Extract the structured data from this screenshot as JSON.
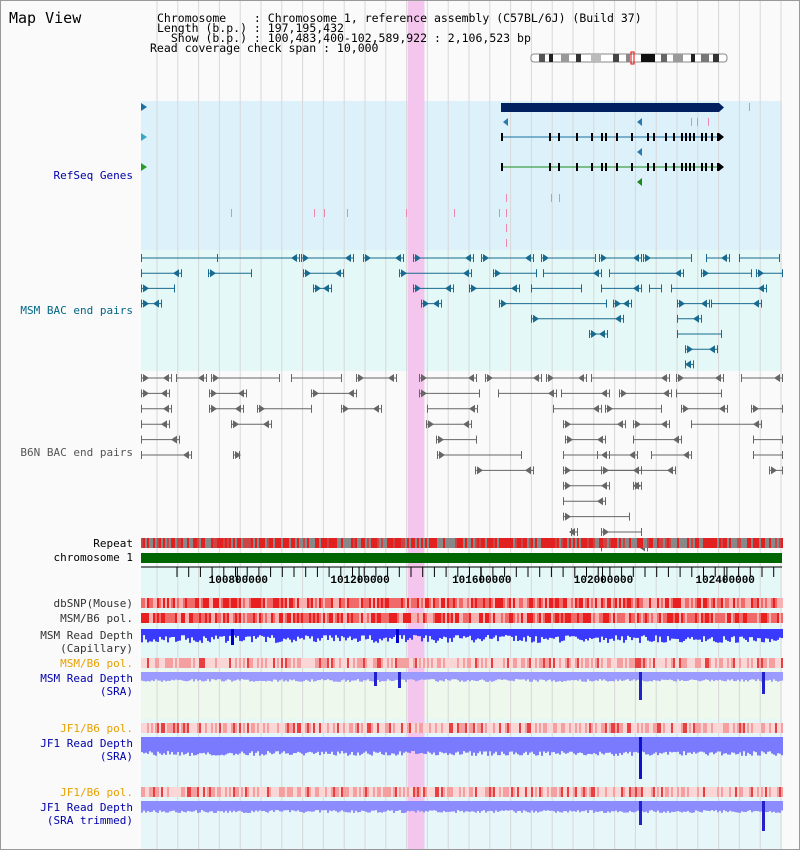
{
  "header": {
    "title": "Map View",
    "line1": "Chromosome    : Chromosome 1, reference assembly (C57BL/6J) (Build 37)",
    "line2": "Length (b.p.) : 197,195,432",
    "line3": "  Show (b.p.) : 100,483,400-102,589,922 : 2,106,523 bp",
    "line4": "Read coverage check span : 10,000"
  },
  "view": {
    "start": 100483400,
    "end": 102589922,
    "highlight": [
      101360000,
      101415000
    ]
  },
  "tracks": {
    "refseq": "RefSeq Genes",
    "msm_bac": "MSM BAC end pairs",
    "b6n_bac": "B6N BAC end pairs",
    "repeat": "Repeat",
    "chrom": "chromosome 1",
    "dbsnp": "dbSNP(Mouse)",
    "msmb6": "MSM/B6 pol.",
    "msm_cap_1": "MSM Read Depth",
    "msm_cap_2": "(Capillary)",
    "msmb6_sra": "MSM/B6 pol.",
    "msm_sra_1": "MSM Read Depth",
    "msm_sra_2": "(SRA)",
    "jf1b6": "JF1/B6 pol.",
    "jf1_sra_1": "JF1 Read Depth",
    "jf1_sra_2": "(SRA)",
    "jf1b6_t": "JF1/B6 pol.",
    "jf1_tr_1": "JF1 Read Depth",
    "jf1_tr_2": "(SRA trimmed)"
  },
  "axis_ticks": [
    "100800000",
    "101200000",
    "101600000",
    "102000000",
    "102400000"
  ],
  "axis_tick_values": [
    100800000,
    101200000,
    101600000,
    102000000,
    102400000
  ],
  "colors": {
    "orange_label": "#e8a000",
    "blue_label": "#0000aa",
    "teal_label": "#006688",
    "gray_label": "#555555",
    "highlight": "#f4c6ee",
    "chrom_green": "#006600"
  }
}
